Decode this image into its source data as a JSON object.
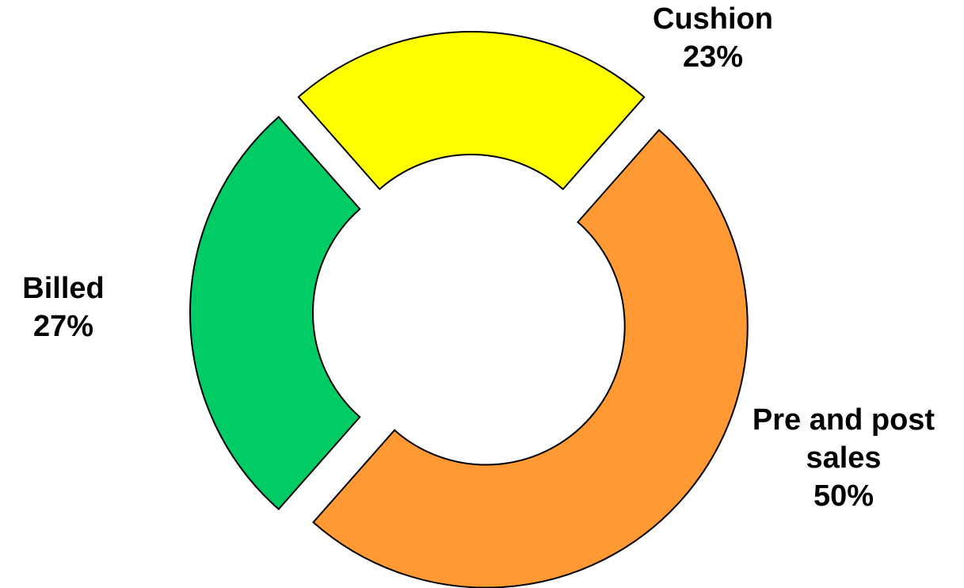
{
  "chart_data": {
    "type": "donut",
    "categories": [
      "Cushion",
      "Pre and post sales",
      "Billed"
    ],
    "values": [
      23,
      50,
      27
    ],
    "value_labels": [
      "23%",
      "50%",
      "27%"
    ],
    "colors": [
      "#ffff00",
      "#ff9933",
      "#00cc66"
    ]
  }
}
